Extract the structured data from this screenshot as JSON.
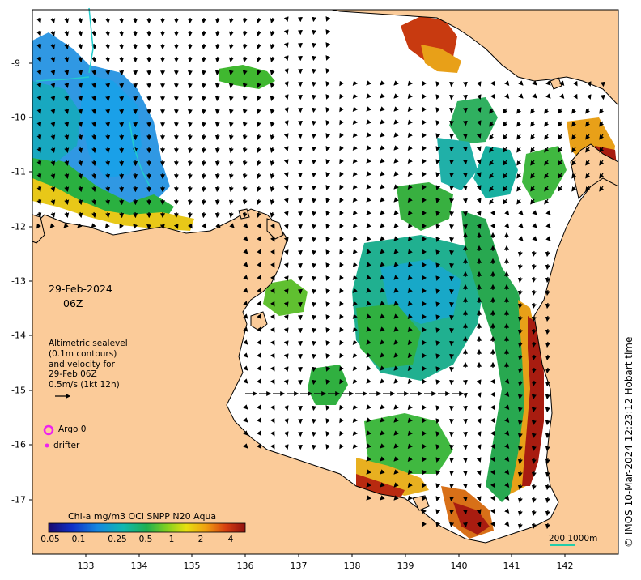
{
  "map": {
    "date": "29-Feb-2024",
    "time": "06Z",
    "altimetry_legend": [
      "Altimetric sealevel",
      "(0.1m contours)",
      "and velocity for",
      "29-Feb 06Z",
      "0.5m/s (1kt 12h)"
    ],
    "argo_label": "Argo 0",
    "drifter_label": "drifter",
    "colorbar_title": "Chl-a mg/m3 OCi SNPP N20 Aqua",
    "colorbar_ticks": [
      "0.05",
      "0.1",
      "0.25",
      "0.5",
      "1",
      "2",
      "4"
    ],
    "scale_label": "200  1000m",
    "credit": "© IMOS 10-Mar-2024 12:23:12 Hobart time",
    "lon_ticks": [
      "133",
      "134",
      "135",
      "136",
      "137",
      "138",
      "139",
      "140",
      "141",
      "142"
    ],
    "lat_ticks": [
      "-9",
      "-10",
      "-11",
      "-12",
      "-13",
      "-14",
      "-15",
      "-16",
      "-17"
    ],
    "colors": {
      "land": "#fbcb99",
      "sea": "#ffffff",
      "argo": "#ee22ee",
      "drifter": "#ee22ee",
      "scale_line": "#22ccaa"
    }
  }
}
